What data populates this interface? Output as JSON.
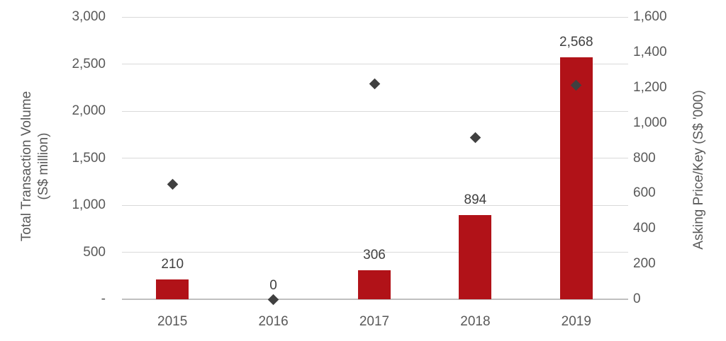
{
  "chart_data": {
    "type": "combo",
    "categories": [
      "2015",
      "2016",
      "2017",
      "2018",
      "2019"
    ],
    "series": [
      {
        "name": "Total Transaction Volume",
        "type": "bar",
        "axis": "left",
        "color": "#B11218",
        "values": [
          210,
          0,
          306,
          894,
          2568
        ],
        "labels": [
          "210",
          "0",
          "306",
          "894",
          "2,568"
        ]
      },
      {
        "name": "Asking Price/Key",
        "type": "scatter",
        "marker": "diamond",
        "axis": "right",
        "color": "#404040",
        "values": [
          650,
          0,
          1220,
          915,
          1215
        ]
      }
    ],
    "left_axis": {
      "title_line1": "Total Transaction Volume",
      "title_line2": "(S$ million)",
      "min": 0,
      "max": 3000,
      "ticks": [
        {
          "value": 3000,
          "label": "3,000"
        },
        {
          "value": 2500,
          "label": "2,500"
        },
        {
          "value": 2000,
          "label": "2,000"
        },
        {
          "value": 1500,
          "label": "1,500"
        },
        {
          "value": 1000,
          "label": "1,000"
        },
        {
          "value": 500,
          "label": "500"
        },
        {
          "value": 0,
          "label": "-"
        }
      ]
    },
    "right_axis": {
      "title": "Asking Price/Key (S$ '000)",
      "min": 0,
      "max": 1600,
      "ticks": [
        {
          "value": 1600,
          "label": "1,600"
        },
        {
          "value": 1400,
          "label": "1,400"
        },
        {
          "value": 1200,
          "label": "1,200"
        },
        {
          "value": 1000,
          "label": "1,000"
        },
        {
          "value": 800,
          "label": "800"
        },
        {
          "value": 600,
          "label": "600"
        },
        {
          "value": 400,
          "label": "400"
        },
        {
          "value": 200,
          "label": "200"
        },
        {
          "value": 0,
          "label": "0"
        }
      ]
    },
    "grid": true,
    "legend": "none",
    "gridline_color": "#D9D9D9",
    "axis_line_color": "#BFBFBF",
    "tick_text_color": "#595959",
    "data_label_color": "#404040"
  }
}
